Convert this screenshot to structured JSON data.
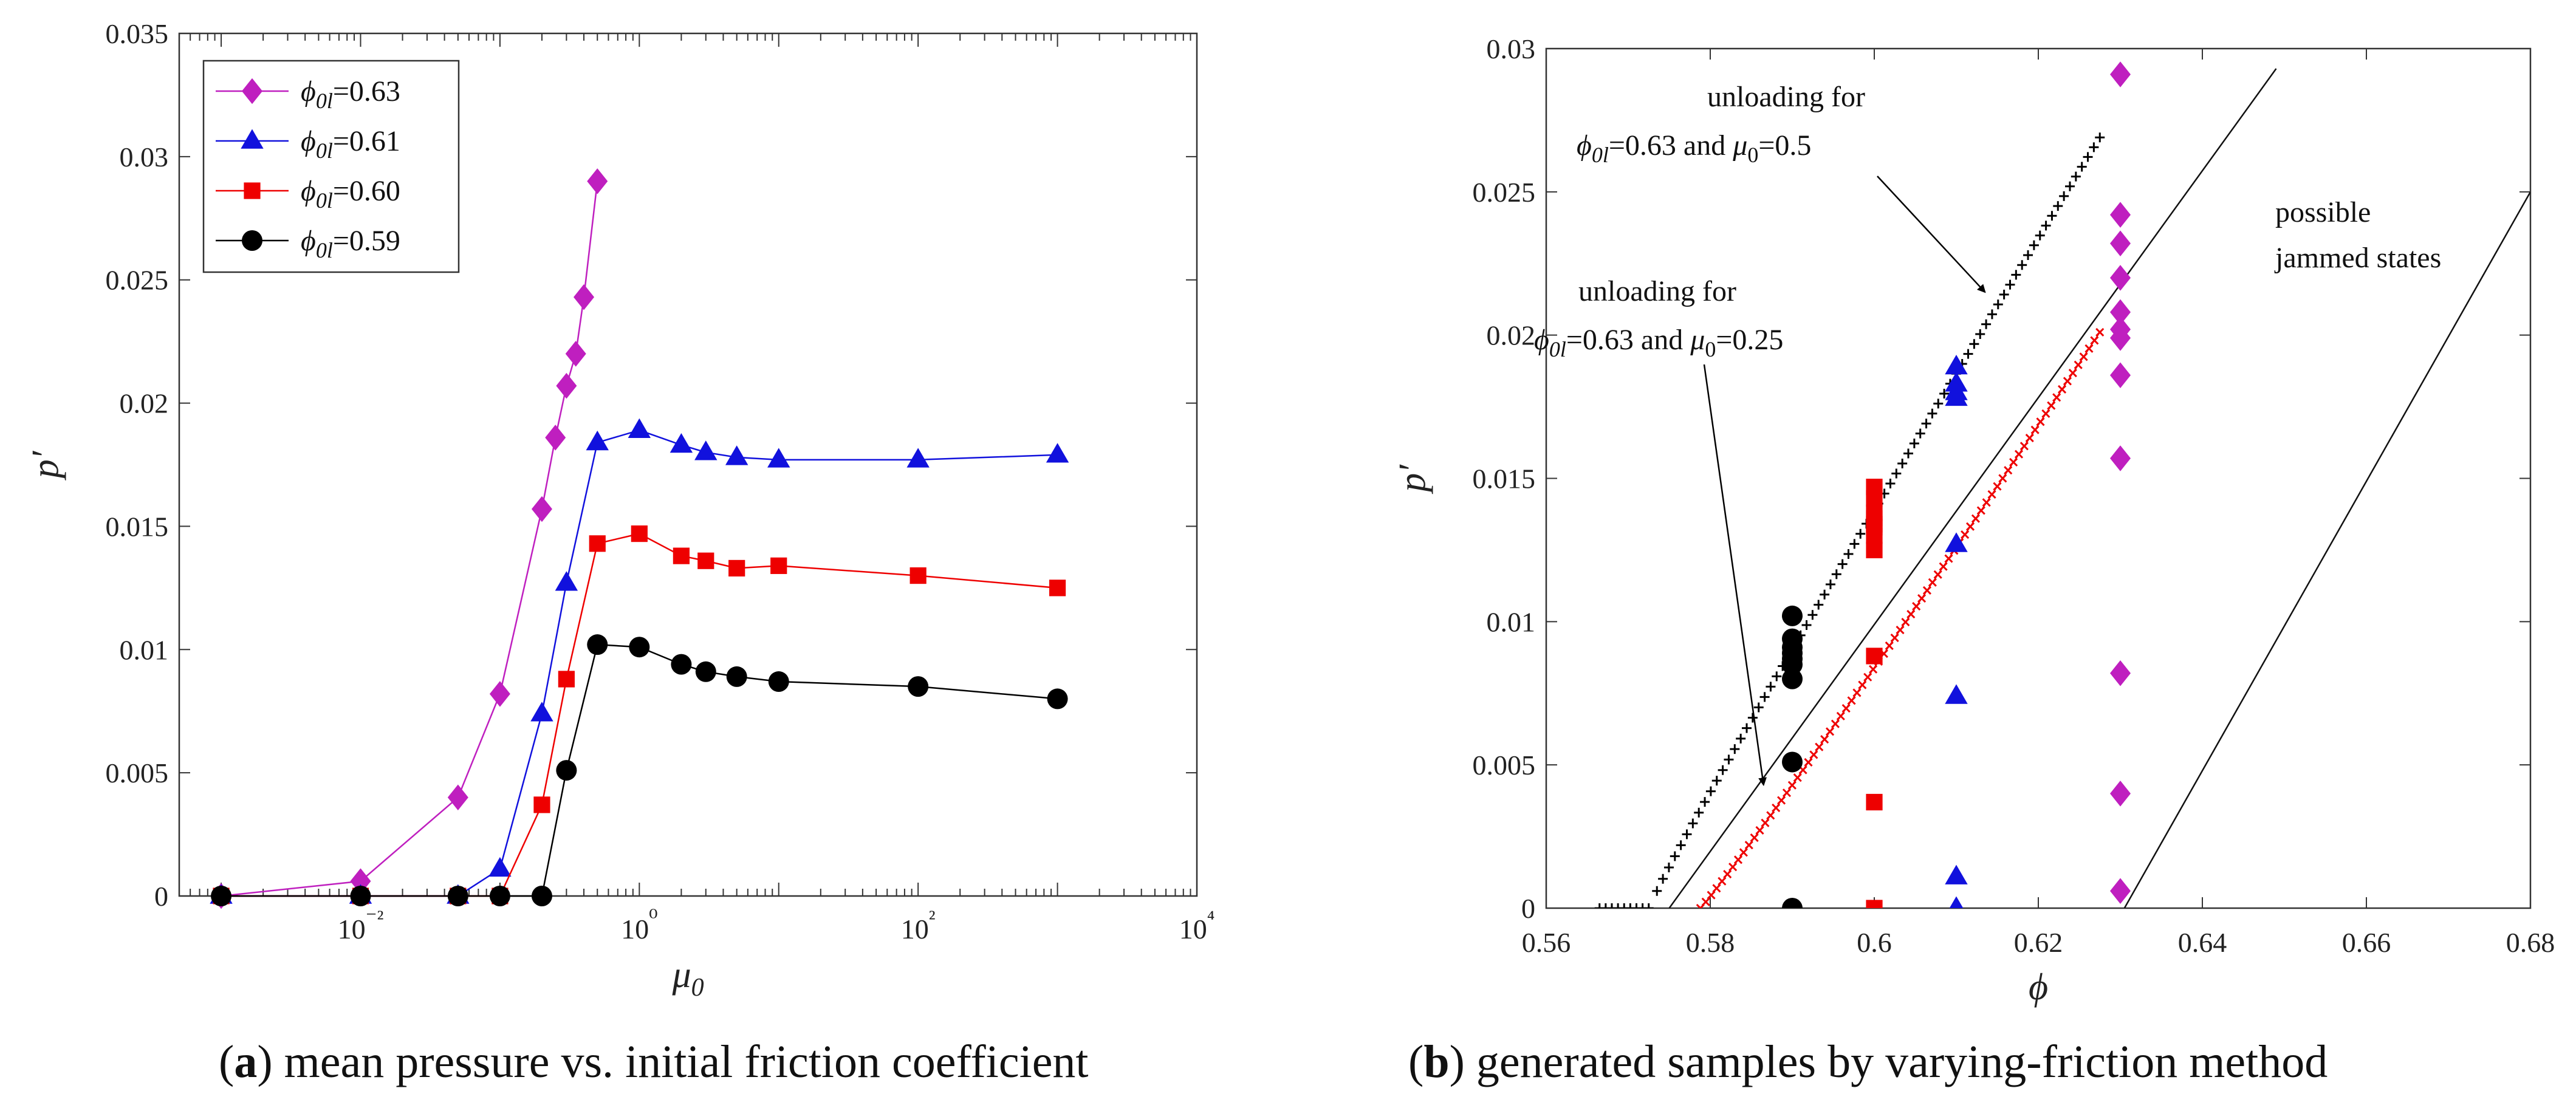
{
  "figure": {
    "caption_a_letter": "a",
    "caption_a_text": "mean pressure vs. initial friction coefficient",
    "caption_b_letter": "b",
    "caption_b_text": "generated samples by varying-friction method"
  },
  "chart_data": [
    {
      "id": "a",
      "type": "line",
      "xscale": "log",
      "xlabel": "μ0",
      "ylabel": "p′",
      "xlim": [
        0.0005,
        10000
      ],
      "ylim": [
        0,
        0.035
      ],
      "xticks": [
        0.01,
        1,
        100,
        10000
      ],
      "xtick_labels": [
        "10⁻²",
        "10⁰",
        "10²",
        "10⁴"
      ],
      "yticks": [
        0,
        0.005,
        0.01,
        0.015,
        0.02,
        0.025,
        0.03,
        0.035
      ],
      "ytick_labels": [
        "0",
        "0.005",
        "0.01",
        "0.015",
        "0.02",
        "0.025",
        "0.03",
        "0.035"
      ],
      "legend_position": "top-left",
      "series": [
        {
          "name": "ϕ0l=0.63",
          "legend_sym": "ϕ",
          "legend_sub": "0l",
          "legend_val": "=0.63",
          "color": "#bf1fbf",
          "marker": "diamond",
          "x": [
            0.001,
            0.01,
            0.05,
            0.1,
            0.2,
            0.25,
            0.3,
            0.35,
            0.4,
            0.5
          ],
          "y": [
            0.0,
            0.0006,
            0.004,
            0.0082,
            0.0157,
            0.0186,
            0.0207,
            0.022,
            0.0243,
            0.029
          ]
        },
        {
          "name": "ϕ0l=0.61",
          "legend_sym": "ϕ",
          "legend_sub": "0l",
          "legend_val": "=0.61",
          "color": "#1111dd",
          "marker": "triangle",
          "x": [
            0.001,
            0.01,
            0.05,
            0.1,
            0.2,
            0.3,
            0.5,
            1,
            2,
            3,
            5,
            10,
            100,
            1000
          ],
          "y": [
            0.0,
            0.0,
            0.0,
            0.0011,
            0.0074,
            0.0127,
            0.0184,
            0.0189,
            0.0183,
            0.018,
            0.0178,
            0.0177,
            0.0177,
            0.0179
          ]
        },
        {
          "name": "ϕ0l=0.60",
          "legend_sym": "ϕ",
          "legend_sub": "0l",
          "legend_val": "=0.60",
          "color": "#ee0000",
          "marker": "square",
          "x": [
            0.001,
            0.01,
            0.05,
            0.1,
            0.2,
            0.3,
            0.5,
            1,
            2,
            3,
            5,
            10,
            100,
            1000
          ],
          "y": [
            0.0,
            0.0,
            0.0,
            0.0,
            0.0037,
            0.0088,
            0.0143,
            0.0147,
            0.0138,
            0.0136,
            0.0133,
            0.0134,
            0.013,
            0.0125
          ]
        },
        {
          "name": "ϕ0l=0.59",
          "legend_sym": "ϕ",
          "legend_sub": "0l",
          "legend_val": "=0.59",
          "color": "#000000",
          "marker": "circle",
          "x": [
            0.001,
            0.01,
            0.05,
            0.1,
            0.2,
            0.3,
            0.5,
            1,
            2,
            3,
            5,
            10,
            100,
            1000
          ],
          "y": [
            0.0,
            0.0,
            0.0,
            0.0,
            0.0,
            0.0051,
            0.0102,
            0.0101,
            0.0094,
            0.0091,
            0.0089,
            0.0087,
            0.0085,
            0.008
          ]
        }
      ]
    },
    {
      "id": "b",
      "type": "scatter",
      "xlabel": "ϕ",
      "ylabel": "p′",
      "xlim": [
        0.56,
        0.68
      ],
      "ylim": [
        0,
        0.03
      ],
      "xticks": [
        0.56,
        0.58,
        0.6,
        0.62,
        0.64,
        0.66,
        0.68
      ],
      "xtick_labels": [
        "0.56",
        "0.58",
        "0.6",
        "0.62",
        "0.64",
        "0.66",
        "0.68"
      ],
      "yticks": [
        0,
        0.005,
        0.01,
        0.015,
        0.02,
        0.025,
        0.03
      ],
      "ytick_labels": [
        "0",
        "0.005",
        "0.01",
        "0.015",
        "0.02",
        "0.025",
        "0.03"
      ],
      "series": [
        {
          "name": "ϕ0l=0.63",
          "color": "#bf1fbf",
          "marker": "diamond",
          "x": [
            0.63,
            0.63,
            0.63,
            0.63,
            0.63,
            0.63,
            0.63,
            0.63,
            0.63,
            0.63,
            0.63,
            0.63
          ],
          "y": [
            0.0291,
            0.0242,
            0.0232,
            0.022,
            0.0208,
            0.0202,
            0.0186,
            0.0157,
            0.0082,
            0.004,
            0.0006,
            0.0199
          ]
        },
        {
          "name": "ϕ0l=0.61",
          "color": "#1111dd",
          "marker": "triangle",
          "x": [
            0.61,
            0.61,
            0.61,
            0.61,
            0.61,
            0.61,
            0.61,
            0.61
          ],
          "y": [
            0.0189,
            0.0183,
            0.018,
            0.0178,
            0.0127,
            0.0074,
            0.0011,
            0.0
          ]
        },
        {
          "name": "ϕ0l=0.60",
          "color": "#ee0000",
          "marker": "square",
          "x": [
            0.6,
            0.6,
            0.6,
            0.6,
            0.6,
            0.6,
            0.6,
            0.6,
            0.6,
            0.6,
            0.6
          ],
          "y": [
            0.0147,
            0.0143,
            0.0138,
            0.0136,
            0.0134,
            0.0133,
            0.013,
            0.0125,
            0.0088,
            0.0037,
            0.0
          ]
        },
        {
          "name": "ϕ0l=0.59",
          "color": "#000000",
          "marker": "circle",
          "x": [
            0.59,
            0.59,
            0.59,
            0.59,
            0.59,
            0.59,
            0.59,
            0.59,
            0.59
          ],
          "y": [
            0.0102,
            0.0094,
            0.0091,
            0.0089,
            0.0087,
            0.0085,
            0.008,
            0.0051,
            0.0
          ]
        },
        {
          "name": "unloading μ0=0.5",
          "color": "#000000",
          "marker": "plus",
          "x_start": 0.5665,
          "x_flat_end": 0.5725,
          "x_rise_start": 0.5735,
          "y_rise_start": 0.0006,
          "x_end": 0.6275,
          "y_end": 0.0269,
          "n_flat": 9,
          "n_rise": 75
        },
        {
          "name": "unloading μ0=0.25",
          "color": "#ee0000",
          "marker": "cross",
          "x_start": 0.5788,
          "y_start": 0.0,
          "x_end": 0.6275,
          "y_end": 0.0201,
          "n": 75
        }
      ],
      "reference_lines": [
        {
          "x1": 0.575,
          "y1": 0.0,
          "x2": 0.649,
          "y2": 0.0293
        },
        {
          "x1": 0.6305,
          "y1": 0.0,
          "x2": 0.68,
          "y2": 0.025
        }
      ],
      "annotations": [
        {
          "line1": "unloading for",
          "line2_sym": "ϕ",
          "line2_sub": "0l",
          "line2_rest": "=0.63 and ",
          "line2_mu": "μ",
          "line2_mu_sub": "0",
          "line2_val": "=0.5",
          "arrow_to": [
            0.6135,
            0.0215
          ]
        },
        {
          "line1": "unloading for",
          "line2_sym": "ϕ",
          "line2_sub": "0l",
          "line2_rest": "=0.63 and ",
          "line2_mu": "μ",
          "line2_mu_sub": "0",
          "line2_val": "=0.25",
          "arrow_to": [
            0.5865,
            0.0043
          ]
        },
        {
          "line1": "possible",
          "line2": "jammed states"
        }
      ]
    }
  ]
}
